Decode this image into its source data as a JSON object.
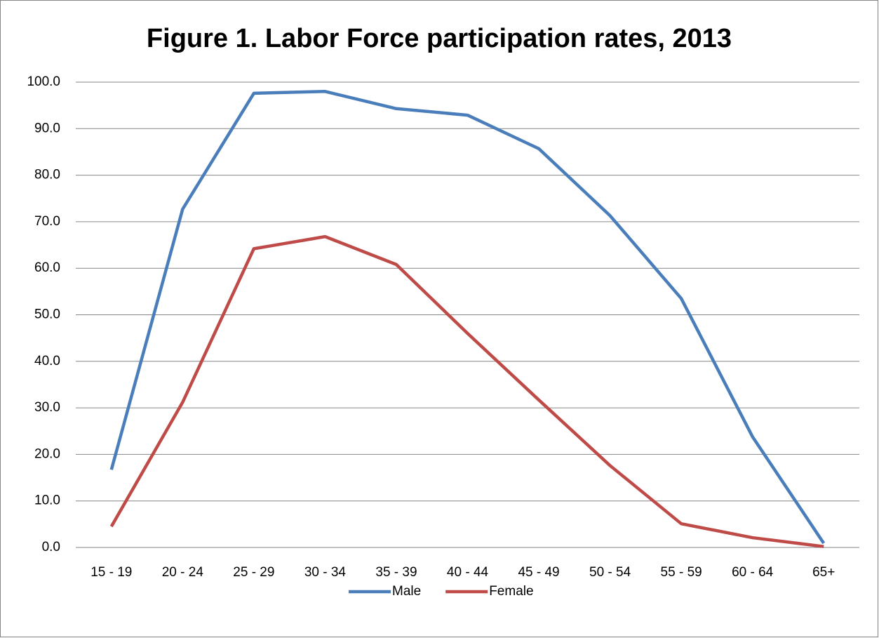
{
  "chart_data": {
    "type": "line",
    "title": "Figure 1. Labor Force participation rates, 2013",
    "categories": [
      "15 - 19",
      "20 - 24",
      "25 - 29",
      "30 - 34",
      "35 - 39",
      "40 - 44",
      "45 - 49",
      "50 - 54",
      "55 - 59",
      "60 - 64",
      "65+"
    ],
    "series": [
      {
        "name": "Male",
        "color": "#4a7ebb",
        "values": [
          16.7,
          72.7,
          97.6,
          98.0,
          94.3,
          92.9,
          85.7,
          71.3,
          53.5,
          23.8,
          0.9
        ]
      },
      {
        "name": "Female",
        "color": "#be4b48",
        "values": [
          4.5,
          31.2,
          64.2,
          66.8,
          60.8,
          46.0,
          31.7,
          17.6,
          5.1,
          2.1,
          0.2
        ]
      }
    ],
    "ylim": [
      0,
      100
    ],
    "yticks": [
      {
        "value": 0,
        "label": "0.0"
      },
      {
        "value": 10,
        "label": "10.0"
      },
      {
        "value": 20,
        "label": "20.0"
      },
      {
        "value": 30,
        "label": "30.0"
      },
      {
        "value": 40,
        "label": "40.0"
      },
      {
        "value": 50,
        "label": "50.0"
      },
      {
        "value": 60,
        "label": "60.0"
      },
      {
        "value": 70,
        "label": "70.0"
      },
      {
        "value": 80,
        "label": "80.0"
      },
      {
        "value": 90,
        "label": "90.0"
      },
      {
        "value": 100,
        "label": "100.0"
      }
    ],
    "grid": true,
    "legend": "bottom"
  }
}
